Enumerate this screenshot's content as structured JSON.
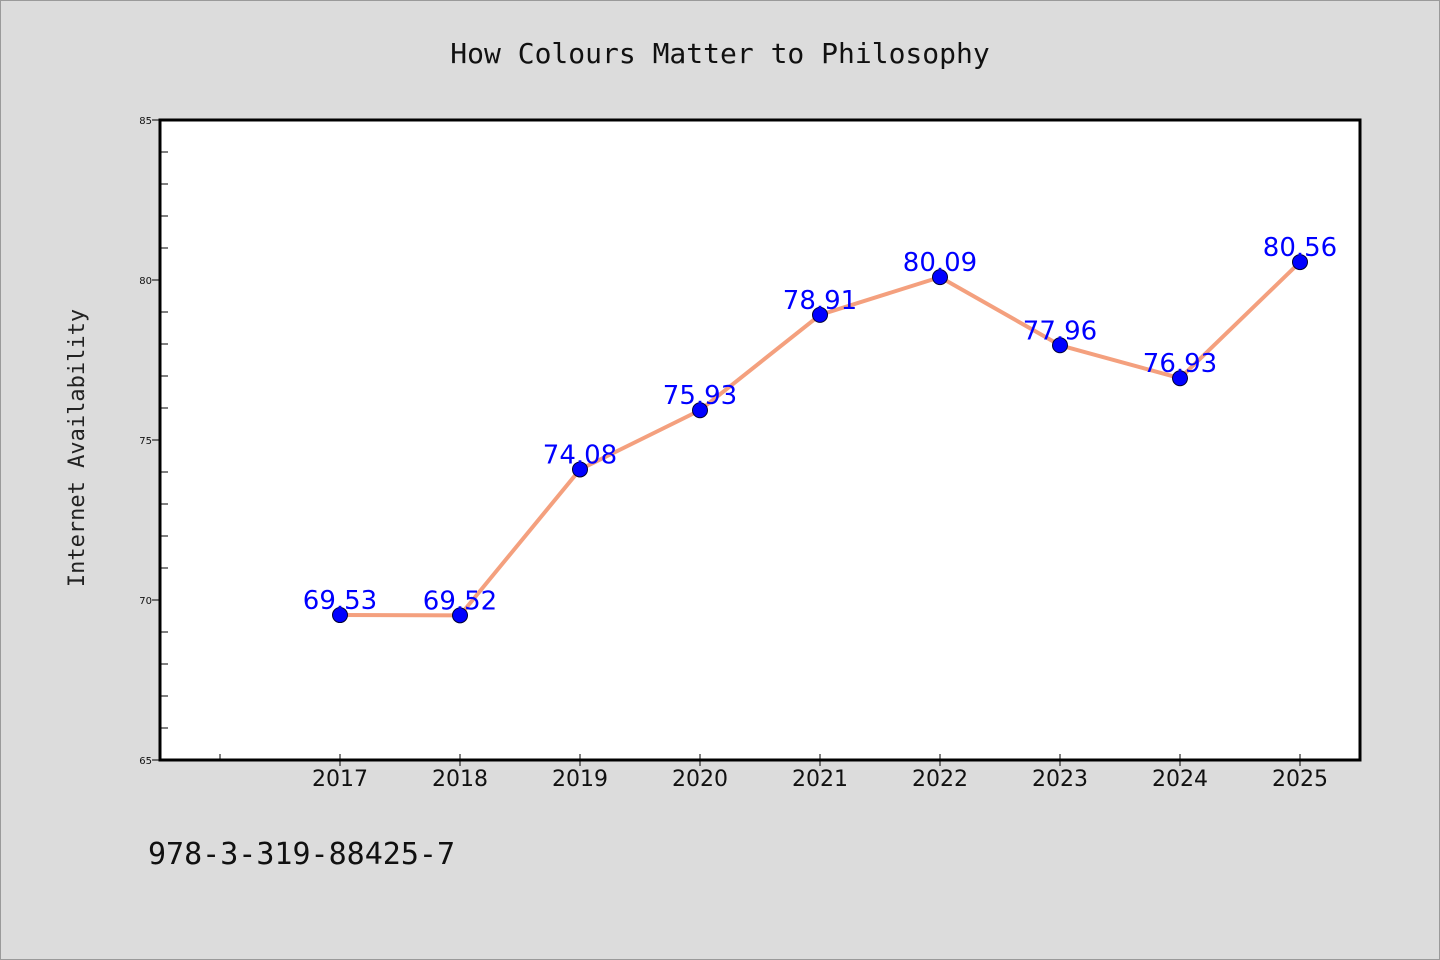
{
  "chart_data": {
    "type": "line",
    "title": "How Colours Matter to Philosophy",
    "xlabel": "",
    "ylabel": "Internet Availability",
    "categories": [
      "2017",
      "2018",
      "2019",
      "2020",
      "2021",
      "2022",
      "2023",
      "2024",
      "2025"
    ],
    "series": [
      {
        "values": [
          69.53,
          69.52,
          74.08,
          75.93,
          78.91,
          80.09,
          77.96,
          76.93,
          80.56
        ],
        "labels": [
          "69.53",
          "69.52",
          "74.08",
          "75.93",
          "78.91",
          "80.09",
          "77.96",
          "76.93",
          "80.56"
        ]
      }
    ],
    "ylim": [
      65,
      85
    ],
    "yticks": [
      "65",
      "70",
      "75",
      "80",
      "85"
    ],
    "grid": false,
    "legend": "none",
    "colors": {
      "line": "#f4a07e",
      "marker": "#0000ff",
      "data_label": "#0000ff",
      "plot_background": "#ffffff",
      "page_background": "#dcdcdc"
    }
  },
  "footer": {
    "isbn": "978-3-319-88425-7"
  }
}
